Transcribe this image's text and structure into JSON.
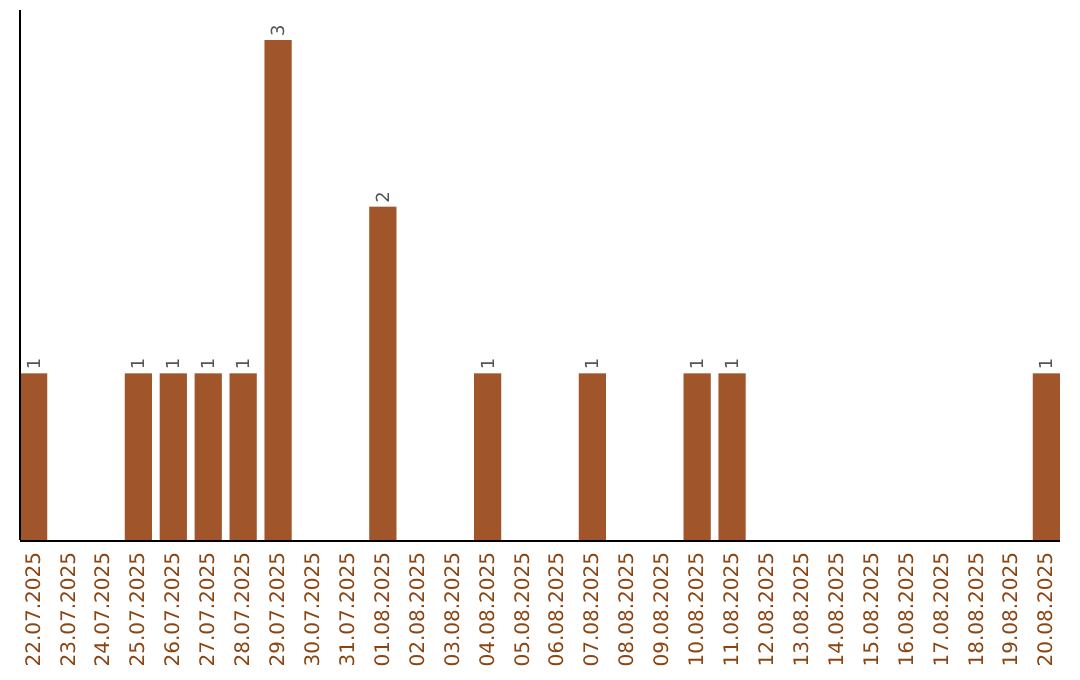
{
  "chart_data": {
    "type": "bar",
    "categories": [
      "22.07.2025",
      "23.07.2025",
      "24.07.2025",
      "25.07.2025",
      "26.07.2025",
      "27.07.2025",
      "28.07.2025",
      "29.07.2025",
      "30.07.2025",
      "31.07.2025",
      "01.08.2025",
      "02.08.2025",
      "03.08.2025",
      "04.08.2025",
      "05.08.2025",
      "06.08.2025",
      "07.08.2025",
      "08.08.2025",
      "09.08.2025",
      "10.08.2025",
      "11.08.2025",
      "12.08.2025",
      "13.08.2025",
      "14.08.2025",
      "15.08.2025",
      "16.08.2025",
      "17.08.2025",
      "18.08.2025",
      "19.08.2025",
      "20.08.2025"
    ],
    "values": [
      1,
      0,
      0,
      1,
      1,
      1,
      1,
      3,
      0,
      0,
      2,
      0,
      0,
      1,
      0,
      0,
      1,
      0,
      0,
      1,
      1,
      0,
      0,
      0,
      0,
      0,
      0,
      0,
      0,
      1
    ],
    "value_labels": [
      "1",
      null,
      null,
      "1",
      "1",
      "1",
      "1",
      "3",
      null,
      null,
      "2",
      null,
      null,
      "1",
      null,
      null,
      "1",
      null,
      null,
      "1",
      "1",
      null,
      null,
      null,
      null,
      null,
      null,
      null,
      null,
      "1"
    ],
    "color": "#a0562a",
    "tick_labels": "x"
  }
}
